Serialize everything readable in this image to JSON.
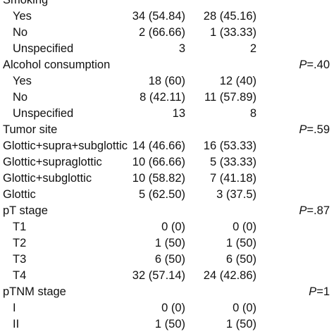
{
  "rows": [
    {
      "label": "Smoking",
      "g1": "",
      "g2": "",
      "p": "",
      "indent": false
    },
    {
      "label": "Yes",
      "g1": "34 (54.84)",
      "g2": "28 (45.16)",
      "p": "",
      "indent": true
    },
    {
      "label": "No",
      "g1": "2 (66.66)",
      "g2": "1 (33.33)",
      "p": "",
      "indent": true
    },
    {
      "label": "Unspecified",
      "g1": "3",
      "g2": "2",
      "p": "",
      "indent": true
    },
    {
      "label": "Alcohol consumption",
      "g1": "",
      "g2": "",
      "p": "=.40",
      "indent": false
    },
    {
      "label": "Yes",
      "g1": "18 (60)",
      "g2": "12 (40)",
      "p": "",
      "indent": true
    },
    {
      "label": "No",
      "g1": "8 (42.11)",
      "g2": "11 (57.89)",
      "p": "",
      "indent": true
    },
    {
      "label": "Unspecified",
      "g1": "13",
      "g2": "8",
      "p": "",
      "indent": true
    },
    {
      "label": "Tumor site",
      "g1": "",
      "g2": "",
      "p": "=.59",
      "indent": false
    },
    {
      "label": "Glottic+supra+subglottic",
      "g1": "14 (46.66)",
      "g2": "16 (53.33)",
      "p": "",
      "indent": false
    },
    {
      "label": "Glottic+supraglottic",
      "g1": "10 (66.66)",
      "g2": "5 (33.33)",
      "p": "",
      "indent": false
    },
    {
      "label": "Glottic+subglottic",
      "g1": "10 (58.82)",
      "g2": "7 (41.18)",
      "p": "",
      "indent": false
    },
    {
      "label": "Glottic",
      "g1": "5 (62.50)",
      "g2": "3 (37.5)",
      "p": "",
      "indent": false
    },
    {
      "label": "pT stage",
      "g1": "",
      "g2": "",
      "p": "=.87",
      "indent": false
    },
    {
      "label": "T1",
      "g1": "0 (0)",
      "g2": "0 (0)",
      "p": "",
      "indent": true
    },
    {
      "label": "T2",
      "g1": "1 (50)",
      "g2": "1 (50)",
      "p": "",
      "indent": true
    },
    {
      "label": "T3",
      "g1": "6 (50)",
      "g2": "6 (50)",
      "p": "",
      "indent": true
    },
    {
      "label": "T4",
      "g1": "32 (57.14)",
      "g2": "24 (42.86)",
      "p": "",
      "indent": true
    },
    {
      "label": "pTNM stage",
      "g1": "",
      "g2": "",
      "p": "=1",
      "indent": false
    },
    {
      "label": "I",
      "g1": "0 (0)",
      "g2": "0 (0)",
      "p": "",
      "indent": true
    },
    {
      "label": "II",
      "g1": "1 (50)",
      "g2": "1 (50)",
      "p": "",
      "indent": true
    }
  ]
}
